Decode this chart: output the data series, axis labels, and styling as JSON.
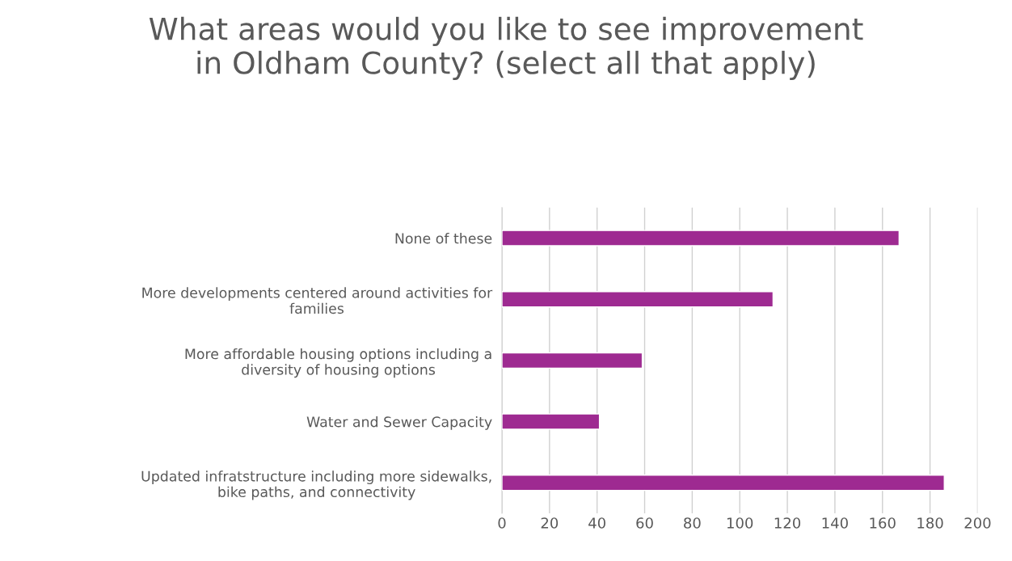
{
  "chart_data": {
    "type": "bar",
    "orientation": "horizontal",
    "title": "What areas would you like to see improvement in Oldham County? (select all that apply)",
    "categories": [
      "None of these",
      "More developments centered around activities for families",
      "More affordable housing options including a diversity of housing options",
      "Water and Sewer Capacity",
      "Updated infratstructure including more sidewalks, bike paths, and connectivity"
    ],
    "values": [
      167,
      114,
      59,
      41,
      186
    ],
    "color": "#9e2a91",
    "xlim": [
      0,
      200
    ],
    "xticks": [
      0,
      20,
      40,
      60,
      80,
      100,
      120,
      140,
      160,
      180,
      200
    ],
    "grid": "x",
    "legend": false
  }
}
